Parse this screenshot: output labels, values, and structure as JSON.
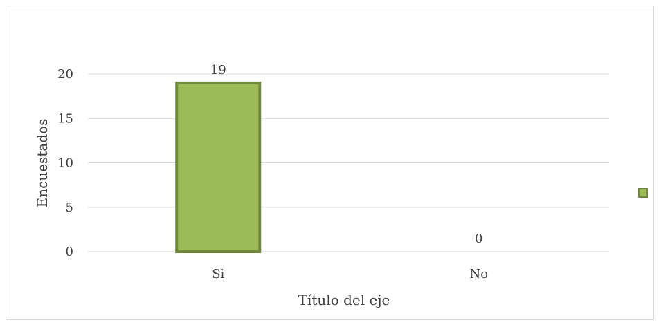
{
  "chart_data": {
    "type": "bar",
    "categories": [
      "Si",
      "No"
    ],
    "values": [
      19,
      0
    ],
    "data_labels": [
      "19",
      "0"
    ],
    "xlabel": "Título del eje",
    "ylabel": "Encuestados",
    "ylim": [
      0,
      20
    ],
    "yticks": [
      0,
      5,
      10,
      15,
      20
    ],
    "ytick_labels": [
      "0",
      "5",
      "10",
      "15",
      "20"
    ],
    "grid": true,
    "legend": {
      "placement": "right",
      "entries": [
        {
          "name": ""
        }
      ]
    },
    "colors": {
      "bar_fill": "#9bbb59",
      "bar_border": "#71893f",
      "grid": "#d9d9d9",
      "text": "#404040"
    }
  }
}
